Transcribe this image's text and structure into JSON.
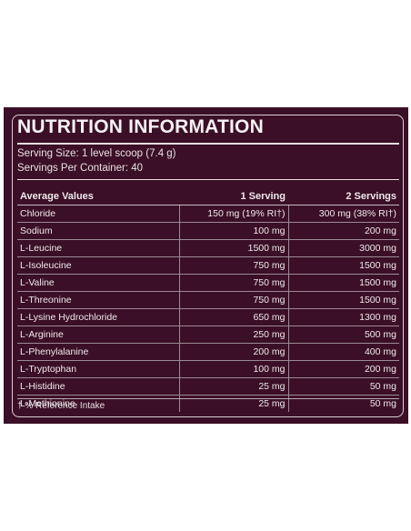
{
  "label": {
    "title": "NUTRITION INFORMATION",
    "serving_size": "Serving Size: 1 level scoop (7.4 g)",
    "servings_per_container": "Servings Per Container: 40",
    "columns": [
      "Average Values",
      "1 Serving",
      "2 Servings"
    ],
    "rows": [
      {
        "name": "Chloride",
        "one": "150 mg (19% RI†)",
        "two": "300 mg (38% RI†)"
      },
      {
        "name": "Sodium",
        "one": "100 mg",
        "two": "200 mg"
      },
      {
        "name": "L-Leucine",
        "one": "1500 mg",
        "two": "3000 mg"
      },
      {
        "name": "L-Isoleucine",
        "one": "750 mg",
        "two": "1500 mg"
      },
      {
        "name": "L-Valine",
        "one": "750 mg",
        "two": "1500 mg"
      },
      {
        "name": "L-Threonine",
        "one": "750 mg",
        "two": "1500 mg"
      },
      {
        "name": "L-Lysine Hydrochloride",
        "one": "650 mg",
        "two": "1300 mg"
      },
      {
        "name": "L-Arginine",
        "one": "250 mg",
        "two": "500 mg"
      },
      {
        "name": "L-Phenylalanine",
        "one": "200 mg",
        "two": "400 mg"
      },
      {
        "name": "L-Tryptophan",
        "one": "100 mg",
        "two": "200 mg"
      },
      {
        "name": "L-Histidine",
        "one": "25 mg",
        "two": "50 mg"
      },
      {
        "name": "L-Methionine",
        "one": "25 mg",
        "two": "50 mg"
      }
    ],
    "footnote": "† % Reference Intake"
  },
  "colors": {
    "panel_background": "#3b0f27",
    "text": "#ece6ea"
  }
}
